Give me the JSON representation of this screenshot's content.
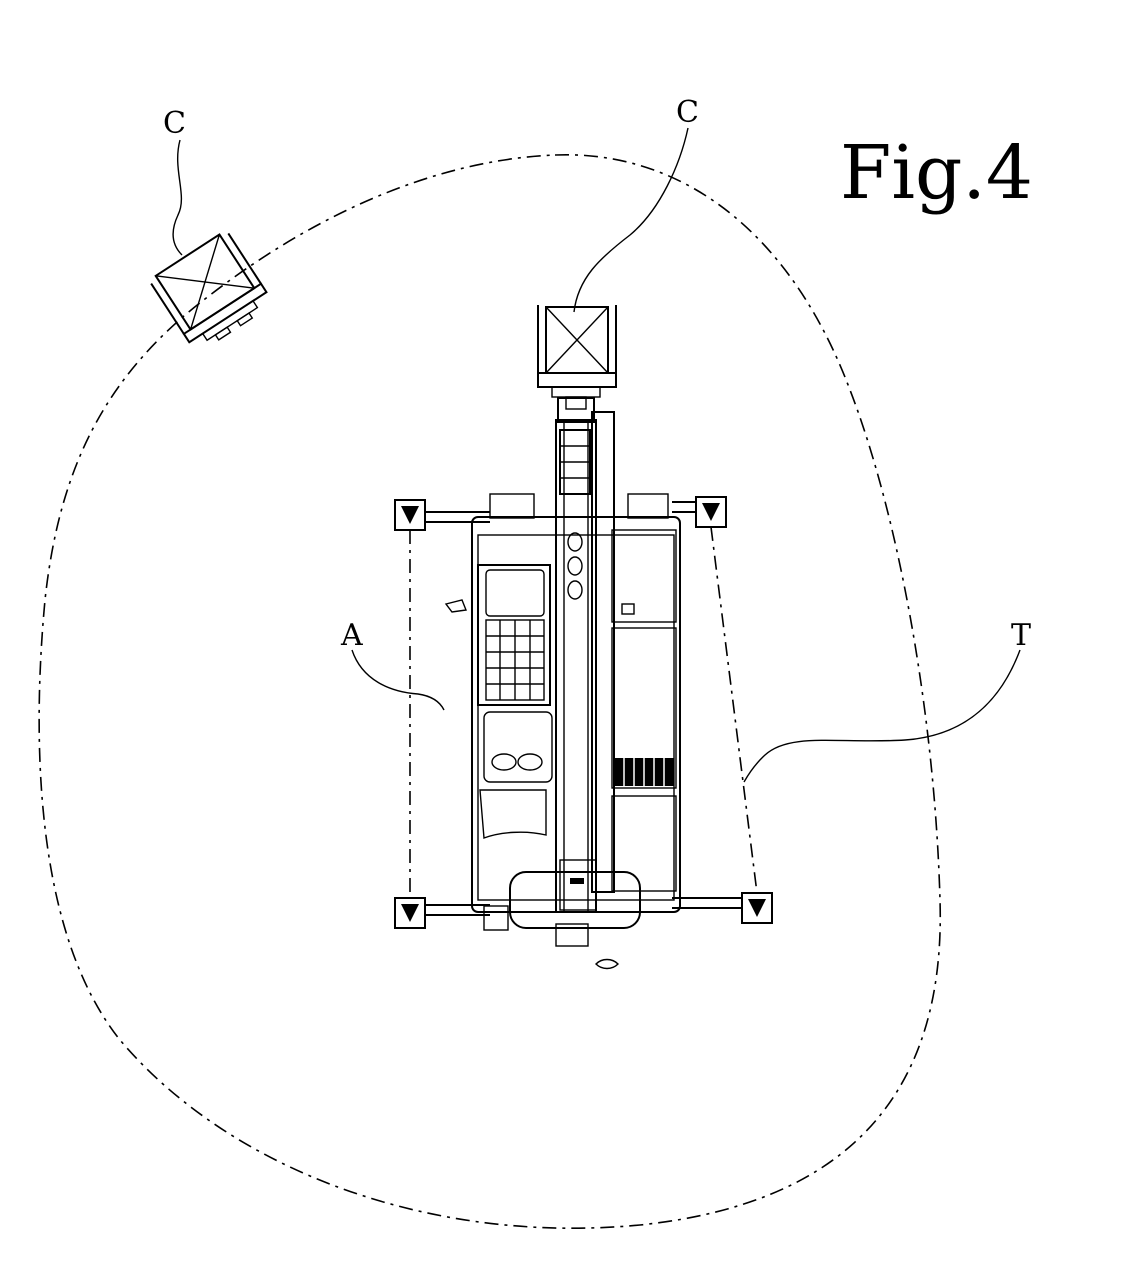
{
  "figure": {
    "title": "Fig.4",
    "labels": {
      "basket_left": "C",
      "basket_top": "C",
      "crane_body": "A",
      "outrigger_boundary": "T"
    }
  },
  "colors": {
    "ink": "#000000",
    "paper": "#ffffff"
  }
}
